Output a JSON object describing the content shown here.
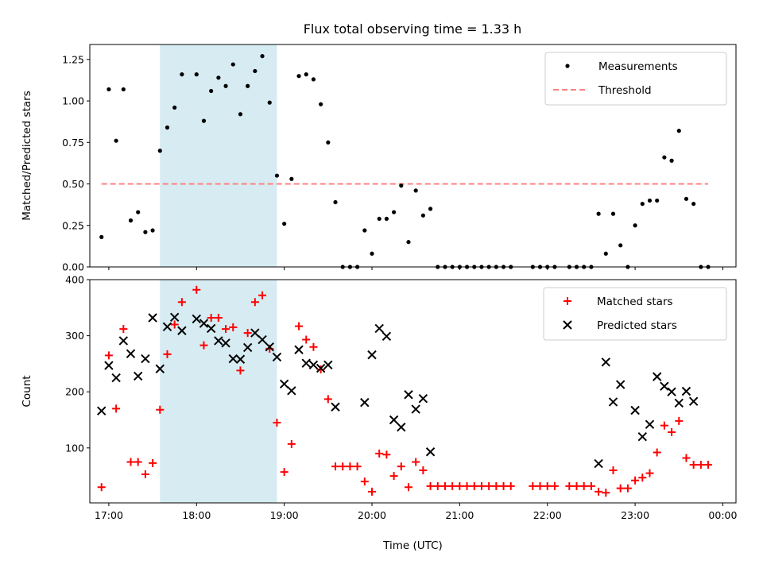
{
  "chart_data": [
    {
      "type": "scatter",
      "title": "Flux total observing time = 1.33 h",
      "xlabel": "",
      "ylabel": "Matched/Predicted stars",
      "ylim": [
        0,
        1.34
      ],
      "yticks": [
        "0.00",
        "0.25",
        "0.50",
        "0.75",
        "1.00",
        "1.25"
      ],
      "ytick_values": [
        0,
        0.25,
        0.5,
        0.75,
        1.0,
        1.25
      ],
      "xlim": [
        "16:47",
        "00:09"
      ],
      "legend": {
        "position": "upper right",
        "entries": [
          "Measurements",
          "Threshold"
        ]
      },
      "shaded_span": {
        "start": "17:35",
        "end": "18:55",
        "color": "#add8e6"
      },
      "threshold": {
        "name": "Threshold",
        "value": 0.5,
        "x_start": "16:55",
        "x_end": "23:50",
        "color": "#ff8080",
        "style": "dashed"
      },
      "series": [
        {
          "name": "Measurements",
          "color": "#000000",
          "marker": "dot",
          "points": [
            [
              "16:55",
              0.18
            ],
            [
              "17:00",
              1.07
            ],
            [
              "17:05",
              0.76
            ],
            [
              "17:10",
              1.07
            ],
            [
              "17:15",
              0.28
            ],
            [
              "17:20",
              0.33
            ],
            [
              "17:25",
              0.21
            ],
            [
              "17:30",
              0.22
            ],
            [
              "17:35",
              0.7
            ],
            [
              "17:40",
              0.84
            ],
            [
              "17:45",
              0.96
            ],
            [
              "17:50",
              1.16
            ],
            [
              "18:00",
              1.16
            ],
            [
              "18:05",
              0.88
            ],
            [
              "18:10",
              1.06
            ],
            [
              "18:15",
              1.14
            ],
            [
              "18:20",
              1.09
            ],
            [
              "18:25",
              1.22
            ],
            [
              "18:30",
              0.92
            ],
            [
              "18:35",
              1.09
            ],
            [
              "18:40",
              1.18
            ],
            [
              "18:45",
              1.27
            ],
            [
              "18:50",
              0.99
            ],
            [
              "18:55",
              0.55
            ],
            [
              "19:00",
              0.26
            ],
            [
              "19:05",
              0.53
            ],
            [
              "19:10",
              1.15
            ],
            [
              "19:15",
              1.16
            ],
            [
              "19:20",
              1.13
            ],
            [
              "19:25",
              0.98
            ],
            [
              "19:30",
              0.75
            ],
            [
              "19:35",
              0.39
            ],
            [
              "19:40",
              0.0
            ],
            [
              "19:45",
              0.0
            ],
            [
              "19:50",
              0.0
            ],
            [
              "19:55",
              0.22
            ],
            [
              "20:00",
              0.08
            ],
            [
              "20:05",
              0.29
            ],
            [
              "20:10",
              0.29
            ],
            [
              "20:15",
              0.33
            ],
            [
              "20:20",
              0.49
            ],
            [
              "20:25",
              0.15
            ],
            [
              "20:30",
              0.46
            ],
            [
              "20:35",
              0.31
            ],
            [
              "20:40",
              0.35
            ],
            [
              "20:45",
              0.0
            ],
            [
              "20:50",
              0.0
            ],
            [
              "20:55",
              0.0
            ],
            [
              "21:00",
              0.0
            ],
            [
              "21:05",
              0.0
            ],
            [
              "21:10",
              0.0
            ],
            [
              "21:15",
              0.0
            ],
            [
              "21:20",
              0.0
            ],
            [
              "21:25",
              0.0
            ],
            [
              "21:30",
              0.0
            ],
            [
              "21:35",
              0.0
            ],
            [
              "21:50",
              0.0
            ],
            [
              "21:55",
              0.0
            ],
            [
              "22:00",
              0.0
            ],
            [
              "22:05",
              0.0
            ],
            [
              "22:15",
              0.0
            ],
            [
              "22:20",
              0.0
            ],
            [
              "22:25",
              0.0
            ],
            [
              "22:30",
              0.0
            ],
            [
              "22:35",
              0.32
            ],
            [
              "22:40",
              0.08
            ],
            [
              "22:45",
              0.32
            ],
            [
              "22:50",
              0.13
            ],
            [
              "22:55",
              0.0
            ],
            [
              "23:00",
              0.25
            ],
            [
              "23:05",
              0.38
            ],
            [
              "23:10",
              0.4
            ],
            [
              "23:15",
              0.4
            ],
            [
              "23:20",
              0.66
            ],
            [
              "23:25",
              0.64
            ],
            [
              "23:30",
              0.82
            ],
            [
              "23:35",
              0.41
            ],
            [
              "23:40",
              0.38
            ],
            [
              "23:45",
              0.0
            ],
            [
              "23:50",
              0.0
            ]
          ]
        }
      ]
    },
    {
      "type": "scatter",
      "title": "",
      "xlabel": "Time (UTC)",
      "ylabel": "Count",
      "ylim": [
        2,
        400
      ],
      "yticks": [
        "100",
        "200",
        "300",
        "400"
      ],
      "ytick_values": [
        100,
        200,
        300,
        400
      ],
      "xlim": [
        "16:47",
        "00:09"
      ],
      "xticks": [
        "17:00",
        "18:00",
        "19:00",
        "20:00",
        "21:00",
        "22:00",
        "23:00",
        "00:00"
      ],
      "legend": {
        "position": "upper right",
        "entries": [
          "Matched stars",
          "Predicted stars"
        ]
      },
      "shaded_span": {
        "start": "17:35",
        "end": "18:55",
        "color": "#add8e6"
      },
      "series": [
        {
          "name": "Matched stars",
          "color": "#ff0000",
          "marker": "plus",
          "points": [
            [
              "16:55",
              30
            ],
            [
              "17:00",
              265
            ],
            [
              "17:05",
              170
            ],
            [
              "17:10",
              312
            ],
            [
              "17:15",
              75
            ],
            [
              "17:20",
              75
            ],
            [
              "17:25",
              53
            ],
            [
              "17:30",
              73
            ],
            [
              "17:35",
              168
            ],
            [
              "17:40",
              267
            ],
            [
              "17:45",
              320
            ],
            [
              "17:50",
              360
            ],
            [
              "18:00",
              382
            ],
            [
              "18:05",
              283
            ],
            [
              "18:10",
              332
            ],
            [
              "18:15",
              332
            ],
            [
              "18:20",
              312
            ],
            [
              "18:25",
              315
            ],
            [
              "18:30",
              238
            ],
            [
              "18:35",
              305
            ],
            [
              "18:40",
              360
            ],
            [
              "18:45",
              372
            ],
            [
              "18:50",
              277
            ],
            [
              "18:55",
              145
            ],
            [
              "19:00",
              57
            ],
            [
              "19:05",
              107
            ],
            [
              "19:10",
              317
            ],
            [
              "19:15",
              293
            ],
            [
              "19:20",
              280
            ],
            [
              "19:25",
              240
            ],
            [
              "19:30",
              187
            ],
            [
              "19:35",
              67
            ],
            [
              "19:40",
              67
            ],
            [
              "19:45",
              67
            ],
            [
              "19:50",
              67
            ],
            [
              "19:55",
              40
            ],
            [
              "20:00",
              22
            ],
            [
              "20:05",
              90
            ],
            [
              "20:10",
              88
            ],
            [
              "20:15",
              50
            ],
            [
              "20:20",
              67
            ],
            [
              "20:25",
              30
            ],
            [
              "20:30",
              75
            ],
            [
              "20:35",
              60
            ],
            [
              "20:40",
              32
            ],
            [
              "20:45",
              32
            ],
            [
              "20:50",
              32
            ],
            [
              "20:55",
              32
            ],
            [
              "21:00",
              32
            ],
            [
              "21:05",
              32
            ],
            [
              "21:10",
              32
            ],
            [
              "21:15",
              32
            ],
            [
              "21:20",
              32
            ],
            [
              "21:25",
              32
            ],
            [
              "21:30",
              32
            ],
            [
              "21:35",
              32
            ],
            [
              "21:50",
              32
            ],
            [
              "21:55",
              32
            ],
            [
              "22:00",
              32
            ],
            [
              "22:05",
              32
            ],
            [
              "22:15",
              32
            ],
            [
              "22:20",
              32
            ],
            [
              "22:25",
              32
            ],
            [
              "22:30",
              32
            ],
            [
              "22:35",
              22
            ],
            [
              "22:40",
              20
            ],
            [
              "22:45",
              60
            ],
            [
              "22:50",
              28
            ],
            [
              "22:55",
              28
            ],
            [
              "23:00",
              42
            ],
            [
              "23:05",
              47
            ],
            [
              "23:10",
              55
            ],
            [
              "23:15",
              92
            ],
            [
              "23:20",
              140
            ],
            [
              "23:25",
              128
            ],
            [
              "23:30",
              148
            ],
            [
              "23:35",
              82
            ],
            [
              "23:40",
              70
            ],
            [
              "23:45",
              70
            ],
            [
              "23:50",
              70
            ]
          ]
        },
        {
          "name": "Predicted stars",
          "color": "#000000",
          "marker": "x",
          "points": [
            [
              "16:55",
              166
            ],
            [
              "17:00",
              247
            ],
            [
              "17:05",
              225
            ],
            [
              "17:10",
              291
            ],
            [
              "17:15",
              268
            ],
            [
              "17:20",
              228
            ],
            [
              "17:25",
              259
            ],
            [
              "17:30",
              332
            ],
            [
              "17:35",
              241
            ],
            [
              "17:40",
              316
            ],
            [
              "17:45",
              333
            ],
            [
              "17:50",
              309
            ],
            [
              "18:00",
              330
            ],
            [
              "18:05",
              322
            ],
            [
              "18:10",
              313
            ],
            [
              "18:15",
              291
            ],
            [
              "18:20",
              287
            ],
            [
              "18:25",
              259
            ],
            [
              "18:30",
              258
            ],
            [
              "18:35",
              279
            ],
            [
              "18:40",
              305
            ],
            [
              "18:45",
              293
            ],
            [
              "18:50",
              280
            ],
            [
              "18:55",
              262
            ],
            [
              "19:00",
              214
            ],
            [
              "19:05",
              202
            ],
            [
              "19:10",
              275
            ],
            [
              "19:15",
              251
            ],
            [
              "19:20",
              248
            ],
            [
              "19:25",
              242
            ],
            [
              "19:30",
              248
            ],
            [
              "19:35",
              173
            ],
            [
              "19:55",
              181
            ],
            [
              "20:00",
              266
            ],
            [
              "20:05",
              313
            ],
            [
              "20:10",
              299
            ],
            [
              "20:15",
              150
            ],
            [
              "20:20",
              137
            ],
            [
              "20:25",
              195
            ],
            [
              "20:30",
              169
            ],
            [
              "20:35",
              188
            ],
            [
              "20:40",
              93
            ],
            [
              "22:35",
              72
            ],
            [
              "22:40",
              253
            ],
            [
              "22:45",
              182
            ],
            [
              "22:50",
              213
            ],
            [
              "23:00",
              167
            ],
            [
              "23:05",
              120
            ],
            [
              "23:10",
              142
            ],
            [
              "23:15",
              227
            ],
            [
              "23:20",
              210
            ],
            [
              "23:25",
              200
            ],
            [
              "23:30",
              180
            ],
            [
              "23:35",
              201
            ],
            [
              "23:40",
              183
            ]
          ]
        }
      ]
    }
  ]
}
